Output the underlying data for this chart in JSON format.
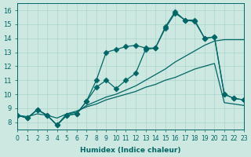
{
  "xlabel": "Humidex (Indice chaleur)",
  "ylabel": "",
  "bg_color": "#cce8e0",
  "grid_color": "#aad4cc",
  "line_color": "#006666",
  "xlim": [
    0,
    23
  ],
  "ylim": [
    7.5,
    16.5
  ],
  "xticks": [
    0,
    1,
    2,
    3,
    4,
    5,
    6,
    7,
    8,
    9,
    10,
    11,
    12,
    13,
    14,
    15,
    16,
    17,
    18,
    19,
    20,
    21,
    22,
    23
  ],
  "yticks": [
    8,
    9,
    10,
    11,
    12,
    13,
    14,
    15,
    16
  ],
  "series": [
    {
      "x": [
        0,
        1,
        2,
        3,
        4,
        5,
        6,
        7,
        8,
        9,
        10,
        11,
        12,
        13,
        14,
        15,
        16,
        17,
        18,
        19,
        20,
        21,
        22,
        23
      ],
      "y": [
        8.5,
        8.3,
        8.9,
        8.5,
        7.8,
        8.5,
        8.6,
        9.5,
        10.5,
        11.0,
        10.4,
        11.0,
        11.5,
        13.2,
        13.3,
        14.8,
        15.9,
        15.3,
        15.3,
        14.0,
        14.1,
        10.0,
        9.7,
        9.6
      ],
      "marker": "D",
      "markersize": 3.5
    },
    {
      "x": [
        0,
        1,
        2,
        3,
        4,
        5,
        6,
        7,
        8,
        9,
        10,
        11,
        12,
        13,
        14,
        15,
        16,
        17,
        18,
        19,
        20,
        21,
        22,
        23
      ],
      "y": [
        8.5,
        8.3,
        8.9,
        8.5,
        7.8,
        8.6,
        8.7,
        9.2,
        9.5,
        9.8,
        10.0,
        10.3,
        10.6,
        11.0,
        11.4,
        11.8,
        12.3,
        12.7,
        13.1,
        13.5,
        13.8,
        13.9,
        13.9,
        13.9
      ],
      "marker": null,
      "markersize": 0
    },
    {
      "x": [
        0,
        1,
        2,
        3,
        4,
        5,
        6,
        7,
        8,
        9,
        10,
        11,
        12,
        13,
        14,
        15,
        16,
        17,
        18,
        19,
        20,
        21,
        22,
        23
      ],
      "y": [
        8.5,
        8.3,
        8.9,
        8.5,
        7.8,
        8.5,
        8.6,
        9.5,
        11.0,
        13.0,
        13.2,
        13.4,
        13.5,
        13.3,
        13.3,
        14.7,
        15.8,
        15.3,
        15.2,
        14.0,
        14.1,
        10.0,
        9.7,
        9.6
      ],
      "marker": "D",
      "markersize": 3.5
    },
    {
      "x": [
        0,
        1,
        2,
        3,
        4,
        5,
        6,
        7,
        8,
        9,
        10,
        11,
        12,
        13,
        14,
        15,
        16,
        17,
        18,
        19,
        20,
        21,
        22,
        23
      ],
      "y": [
        8.5,
        8.4,
        8.6,
        8.5,
        8.3,
        8.6,
        8.8,
        9.1,
        9.3,
        9.6,
        9.8,
        10.0,
        10.2,
        10.5,
        10.7,
        11.0,
        11.2,
        11.5,
        11.8,
        12.0,
        12.2,
        9.4,
        9.3,
        9.2
      ],
      "marker": null,
      "markersize": 0
    }
  ]
}
